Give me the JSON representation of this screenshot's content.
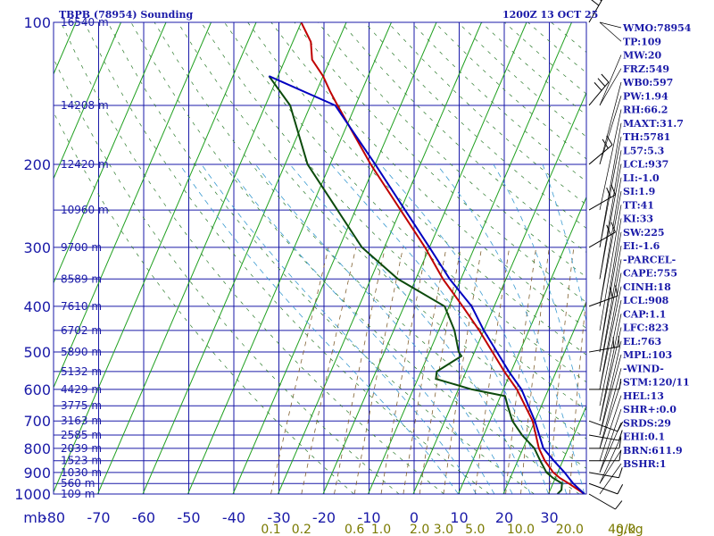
{
  "header": {
    "title": "TBPB (78954) Sounding",
    "time": "1200Z 13 OCT 25"
  },
  "chart_data": {
    "type": "line",
    "subtype": "skew-t log-p",
    "xlabel": "",
    "ylabel": "mb",
    "temperature_ticks": [
      "-80",
      "-70",
      "-60",
      "-50",
      "-40",
      "-30",
      "-20",
      "-10",
      "0",
      "10",
      "20",
      "30"
    ],
    "temperature_values": [
      -80,
      -70,
      -60,
      -50,
      -40,
      -30,
      -20,
      -10,
      0,
      10,
      20,
      30
    ],
    "pressure_ticks": [
      "100",
      "200",
      "300",
      "400",
      "500",
      "600",
      "700",
      "800",
      "900",
      "1000"
    ],
    "pressure_values": [
      100,
      200,
      300,
      400,
      500,
      600,
      700,
      800,
      900,
      1000
    ],
    "height_labels": [
      {
        "p": 100,
        "text": "16540 m"
      },
      {
        "p": 150,
        "text": "14208 m"
      },
      {
        "p": 200,
        "text": "12420 m"
      },
      {
        "p": 250,
        "text": "10960 m"
      },
      {
        "p": 300,
        "text": "9700 m"
      },
      {
        "p": 350,
        "text": "8589 m"
      },
      {
        "p": 400,
        "text": "7610 m"
      },
      {
        "p": 450,
        "text": "6702 m"
      },
      {
        "p": 500,
        "text": "5890 m"
      },
      {
        "p": 550,
        "text": "5132 m"
      },
      {
        "p": 600,
        "text": "4429 m"
      },
      {
        "p": 650,
        "text": "3775 m"
      },
      {
        "p": 700,
        "text": "3163 m"
      },
      {
        "p": 750,
        "text": "2585 m"
      },
      {
        "p": 800,
        "text": "2039 m"
      },
      {
        "p": 850,
        "text": "1523 m"
      },
      {
        "p": 900,
        "text": "1030 m"
      },
      {
        "p": 950,
        "text": "560 m"
      },
      {
        "p": 1000,
        "text": "109 m"
      }
    ],
    "mixing_ratio_labels": [
      {
        "w": 0.1,
        "text": "0.1"
      },
      {
        "w": 0.2,
        "text": "0.2"
      },
      {
        "w": 0.6,
        "text": "0.6"
      },
      {
        "w": 1.0,
        "text": "1.0"
      },
      {
        "w": 2.0,
        "text": "2.0"
      },
      {
        "w": 3.0,
        "text": "3.0"
      },
      {
        "w": 5.0,
        "text": "5.0"
      },
      {
        "w": 10.0,
        "text": "10.0"
      },
      {
        "w": 20.0,
        "text": "20.0"
      },
      {
        "w": 40.0,
        "text": "40.0"
      }
    ],
    "mixing_ratio_unit": "g/kg",
    "xlim": [
      -80,
      35
    ],
    "ylim": [
      1000,
      100
    ],
    "series": [
      {
        "color": "#c00000",
        "points": [
          [
            1000,
            28.0
          ],
          [
            950,
            23.5
          ],
          [
            925,
            21.0
          ],
          [
            900,
            19.0
          ],
          [
            850,
            16.0
          ],
          [
            800,
            13.5
          ],
          [
            700,
            9.5
          ],
          [
            600,
            3.0
          ],
          [
            550,
            -1.5
          ],
          [
            500,
            -6.0
          ],
          [
            450,
            -11.0
          ],
          [
            400,
            -17.0
          ],
          [
            350,
            -24.0
          ],
          [
            300,
            -31.0
          ],
          [
            250,
            -40.0
          ],
          [
            200,
            -51.0
          ],
          [
            150,
            -64.0
          ],
          [
            140,
            -67.0
          ],
          [
            130,
            -70.0
          ],
          [
            120,
            -74.0
          ],
          [
            110,
            -76.0
          ],
          [
            100,
            -80.0
          ]
        ]
      },
      {
        "color": "#0c4a0c",
        "points": [
          [
            1000,
            22.0
          ],
          [
            980,
            22.5
          ],
          [
            950,
            22.0
          ],
          [
            925,
            19.5
          ],
          [
            900,
            17.5
          ],
          [
            850,
            15.0
          ],
          [
            800,
            12.5
          ],
          [
            750,
            8.5
          ],
          [
            700,
            5.0
          ],
          [
            650,
            2.5
          ],
          [
            620,
            1.0
          ],
          [
            600,
            -7.0
          ],
          [
            570,
            -16.0
          ],
          [
            550,
            -16.5
          ],
          [
            510,
            -12.5
          ],
          [
            500,
            -13.5
          ],
          [
            450,
            -16.5
          ],
          [
            400,
            -21.0
          ],
          [
            350,
            -34.0
          ],
          [
            300,
            -45.0
          ],
          [
            250,
            -54.0
          ],
          [
            200,
            -65.0
          ],
          [
            150,
            -74.5
          ],
          [
            130,
            -82.0
          ]
        ]
      },
      {
        "color": "#0000c0",
        "points": [
          [
            1000,
            28.0
          ],
          [
            950,
            24.5
          ],
          [
            900,
            21.5
          ],
          [
            850,
            18.0
          ],
          [
            800,
            14.5
          ],
          [
            700,
            10.0
          ],
          [
            600,
            4.0
          ],
          [
            550,
            -0.5
          ],
          [
            500,
            -5.0
          ],
          [
            450,
            -10.0
          ],
          [
            400,
            -15.0
          ],
          [
            350,
            -22.5
          ],
          [
            300,
            -30.0
          ],
          [
            250,
            -39.0
          ],
          [
            200,
            -50.0
          ],
          [
            150,
            -64.5
          ],
          [
            130,
            -82.0
          ]
        ]
      }
    ],
    "wind_barbs": [
      {
        "p": 1000,
        "dir": 120,
        "spd": 10
      },
      {
        "p": 950,
        "dir": 110,
        "spd": 10
      },
      {
        "p": 900,
        "dir": 100,
        "spd": 10
      },
      {
        "p": 850,
        "dir": 90,
        "spd": 10
      },
      {
        "p": 800,
        "dir": 90,
        "spd": 10
      },
      {
        "p": 750,
        "dir": 100,
        "spd": 10
      },
      {
        "p": 700,
        "dir": 110,
        "spd": 10
      },
      {
        "p": 600,
        "dir": 90,
        "spd": 10
      },
      {
        "p": 500,
        "dir": 80,
        "spd": 15
      },
      {
        "p": 400,
        "dir": 70,
        "spd": 15
      },
      {
        "p": 300,
        "dir": 60,
        "spd": 20
      },
      {
        "p": 250,
        "dir": 60,
        "spd": 20
      },
      {
        "p": 200,
        "dir": 50,
        "spd": 20
      },
      {
        "p": 150,
        "dir": 40,
        "spd": 25
      },
      {
        "p": 100,
        "dir": 30,
        "spd": 30
      }
    ]
  },
  "indices": [
    "WMO:78954",
    "TP:109",
    "MW:20",
    "FRZ:549",
    "WB0:597",
    "PW:1.94",
    "RH:66.2",
    "MAXT:31.7",
    "TH:5781",
    "L57:5.3",
    "LCL:937",
    "LI:-1.0",
    "SI:1.9",
    "TT:41",
    "KI:33",
    "SW:225",
    "EI:-1.6",
    "-PARCEL-",
    "CAPE:755",
    "CINH:18",
    "LCL:908",
    "CAP:1.1",
    "LFC:823",
    "EL:763",
    "MPL:103",
    "-WIND-",
    "STM:120/11",
    "HEL:13",
    "SHR+:0.0",
    "SRDS:29",
    "EHI:0.1",
    "BRN:611.9",
    "BSHR:1"
  ]
}
